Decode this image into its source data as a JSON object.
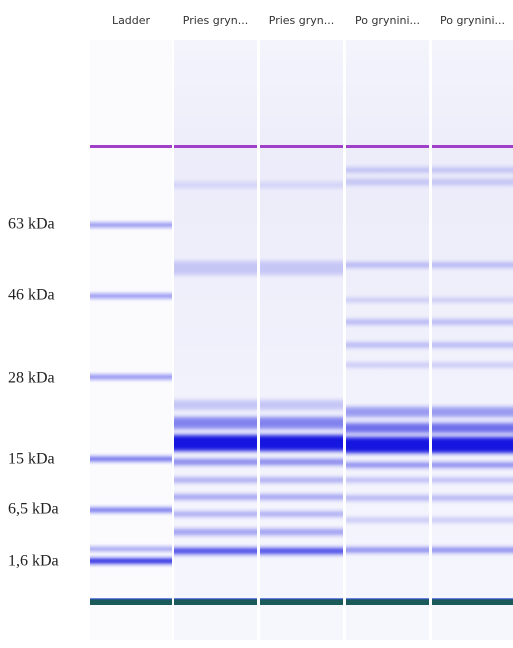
{
  "lanes": [
    "Ladder",
    "Pries gryn...",
    "Pries gryn...",
    "Po grynini...",
    "Po grynini..."
  ],
  "markers": [
    "63 kDa",
    "46 kDa",
    "28 kDa",
    "15 kDa",
    "6,5 kDa",
    "1,6 kDa"
  ]
}
